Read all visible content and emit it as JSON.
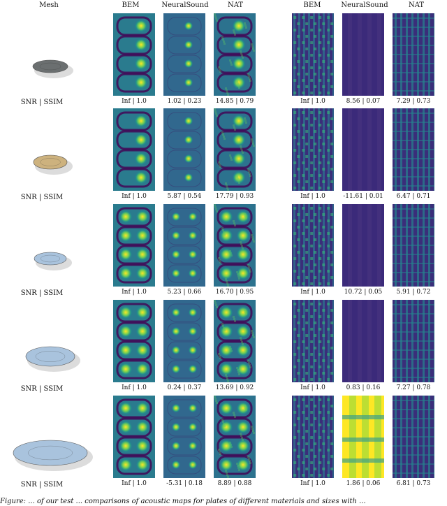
{
  "headers": {
    "mesh": "Mesh",
    "left": [
      "BEM",
      "NeuralSound",
      "NAT"
    ],
    "right": [
      "BEM",
      "NeuralSound",
      "NAT"
    ]
  },
  "row_label": "SNR | SSIM",
  "rows": [
    {
      "metrics_left": [
        "Inf | 1.0",
        "1.02 | 0.23",
        "14.85 | 0.79"
      ],
      "metrics_right": [
        "Inf | 1.0",
        "8.56 | 0.07",
        "7.29 | 0.73"
      ]
    },
    {
      "metrics_left": [
        "Inf | 1.0",
        "5.87 | 0.54",
        "17.79 | 0.93"
      ],
      "metrics_right": [
        "Inf | 1.0",
        "-11.61 | 0.01",
        "6.47 | 0.71"
      ]
    },
    {
      "metrics_left": [
        "Inf | 1.0",
        "5.23 | 0.66",
        "16.70 | 0.95"
      ],
      "metrics_right": [
        "Inf | 1.0",
        "10.72 | 0.05",
        "5.91 | 0.72"
      ]
    },
    {
      "metrics_left": [
        "Inf | 1.0",
        "0.24 | 0.37",
        "13.69 | 0.92"
      ],
      "metrics_right": [
        "Inf | 1.0",
        "0.83 | 0.16",
        "7.27 | 0.78"
      ]
    },
    {
      "metrics_left": [
        "Inf | 1.0",
        "-5.31 | 0.18",
        "8.89 | 0.88"
      ],
      "metrics_right": [
        "Inf | 1.0",
        "1.86 | 0.06",
        "6.81 | 0.73"
      ]
    }
  ],
  "caption": "Figure: ... of our test ... comparisons of acoustic maps for plates of different materials and sizes with ...",
  "colors": {
    "viridis_dark": "#440154",
    "viridis_mid": "#21918c",
    "viridis_bright": "#fde725",
    "plate_dark": "#6b6f70",
    "plate_sand": "#cdb27e",
    "plate_blue": "#a9c3dd"
  }
}
